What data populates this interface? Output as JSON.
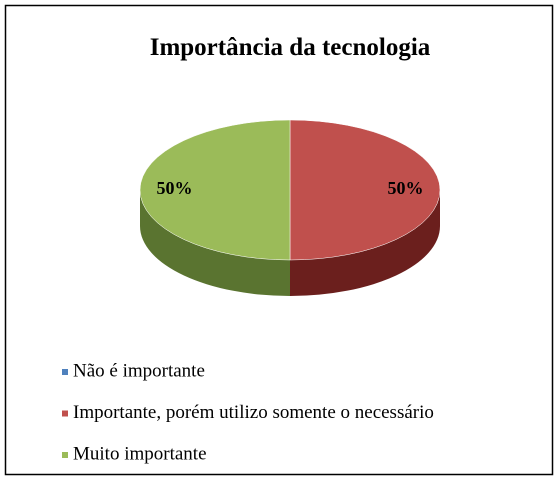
{
  "chart_data": {
    "type": "pie3d",
    "title": "Importância da tecnologia",
    "categories": [
      "Não é importante",
      "Importante, porém utilizo somente o necessário",
      "Muito importante"
    ],
    "values": [
      0,
      50,
      50
    ],
    "value_labels": [
      null,
      "50%",
      "50%"
    ],
    "colors": [
      "#4f81bd",
      "#c0504d",
      "#9bbb59"
    ],
    "side_colors": [
      "#2e4d73",
      "#6b1f1d",
      "#5a7430"
    ],
    "legend": "bottom"
  }
}
